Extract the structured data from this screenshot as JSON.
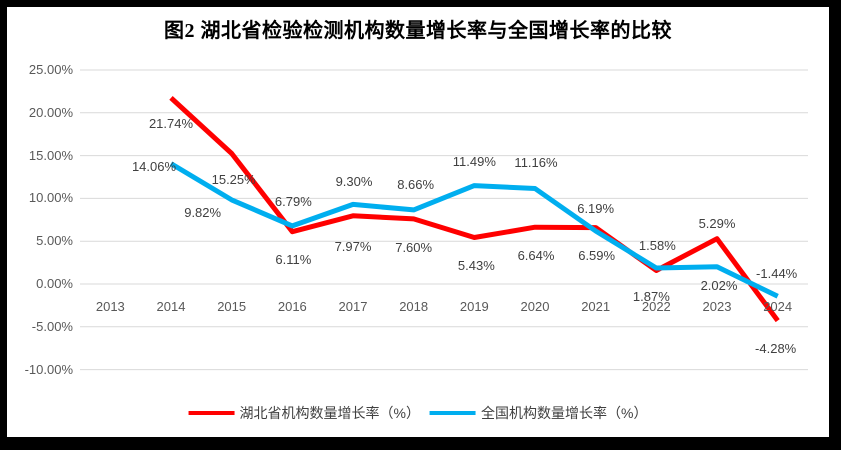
{
  "frame": {
    "border_color": "#000000",
    "card_background": "#FFFFFF"
  },
  "chart_data": {
    "type": "line",
    "title": "图2 湖北省检验检测机构数量增长率与全国增长率的比较",
    "categories": [
      "2013",
      "2014",
      "2015",
      "2016",
      "2017",
      "2018",
      "2019",
      "2020",
      "2021",
      "2022",
      "2023",
      "2024"
    ],
    "series": [
      {
        "name": "湖北省机构数量增长率（%）",
        "color": "#FF0000",
        "values": [
          null,
          21.74,
          15.25,
          6.11,
          7.97,
          7.6,
          5.43,
          6.64,
          6.59,
          1.58,
          5.29,
          -4.28
        ],
        "label_offsets": [
          null,
          [
            0,
            26
          ],
          [
            2,
            27
          ],
          [
            1,
            28
          ],
          [
            0,
            31
          ],
          [
            0,
            29
          ],
          [
            2,
            28
          ],
          [
            1,
            29
          ],
          [
            1,
            28
          ],
          [
            1,
            -24
          ],
          [
            0,
            -15
          ],
          [
            -2,
            28
          ]
        ]
      },
      {
        "name": "全国机构数量增长率（%）",
        "color": "#00AEEF",
        "values": [
          null,
          14.06,
          9.82,
          6.79,
          9.3,
          8.66,
          11.49,
          11.16,
          6.19,
          1.87,
          2.02,
          -1.44
        ],
        "label_offsets": [
          null,
          [
            -17,
            3
          ],
          [
            -29,
            13
          ],
          [
            1,
            -24
          ],
          [
            1,
            -22
          ],
          [
            2,
            -25
          ],
          [
            0,
            -24
          ],
          [
            1,
            -25
          ],
          [
            0,
            -22
          ],
          [
            -5,
            29
          ],
          [
            2,
            19
          ],
          [
            -1,
            -22
          ]
        ]
      }
    ],
    "y_ticks": [
      "25.00%",
      "20.00%",
      "15.00%",
      "10.00%",
      "5.00%",
      "0.00%",
      "-5.00%",
      "-10.00%"
    ],
    "ylim": [
      -10,
      25
    ],
    "y_tick_step": 5,
    "grid": "horizontal",
    "grid_color": "#D9D9D9",
    "axis_label_color": "#595959",
    "data_label_color": "#404040",
    "data_labels": true,
    "legend_position": "bottom",
    "line_width": 5
  }
}
